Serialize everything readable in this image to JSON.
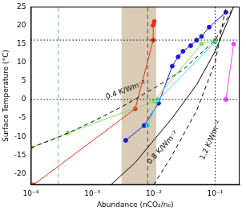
{
  "chart_data": {
    "type": "line",
    "x_label": "Abundance (nCO₂/n₀)",
    "y_label": "Surface Temperature (°C)",
    "log": "x",
    "grid": false,
    "xlim": [
      0.0001,
      0.25
    ],
    "xticks": [
      {
        "value": 0.0001,
        "label": "10⁻⁴"
      },
      {
        "value": 0.001,
        "label": "10⁻³"
      },
      {
        "value": 0.01,
        "label": "10⁻²"
      },
      {
        "value": 0.1,
        "label": "10⁻¹"
      }
    ],
    "ylim": [
      -23,
      25
    ],
    "yticks": [
      -20,
      -15,
      -10,
      -5,
      0,
      5,
      10,
      15,
      20,
      25
    ],
    "shaded_band": {
      "x": [
        0.003,
        0.011
      ],
      "color": "#d9cbb5"
    },
    "series": [
      {
        "color": "#000000",
        "line_style": "dotted",
        "marker": "none",
        "x": [
          0.0001,
          0.25
        ],
        "values": [
          0,
          0
        ]
      },
      {
        "color": "#000000",
        "line_style": "dotted",
        "marker": "none",
        "x": [
          0.0001,
          0.25
        ],
        "values": [
          16,
          16
        ]
      },
      {
        "color": "#000000",
        "line_style": "dotted",
        "marker": "none",
        "x": [
          0.1,
          0.1
        ],
        "values": [
          -23,
          25
        ]
      },
      {
        "color": "#4fb3bf",
        "line_style": "dashed",
        "marker": "none",
        "x": [
          0.00028,
          0.00028
        ],
        "values": [
          -23,
          25
        ]
      },
      {
        "color": "#5c4a1c",
        "line_style": "dashed",
        "marker": "none",
        "x": [
          0.008,
          0.008
        ],
        "values": [
          -23,
          25
        ]
      },
      {
        "color": "#000000",
        "line_style": "dashed",
        "marker": "none",
        "x": [
          0.0001,
          0.0003,
          0.001,
          0.003,
          0.01,
          0.03,
          0.1,
          0.2
        ],
        "values": [
          -13,
          -10,
          -6,
          -2,
          3,
          8,
          16,
          25
        ]
      },
      {
        "color": "#000000",
        "line_style": "solid",
        "marker": "none",
        "x": [
          0.002,
          0.005,
          0.01,
          0.02,
          0.05,
          0.1,
          0.2
        ],
        "values": [
          -23,
          -17,
          -11,
          -5,
          4,
          13,
          25
        ]
      },
      {
        "color": "#000000",
        "line_style": "dashed",
        "marker": "none",
        "x": [
          0.01,
          0.02,
          0.05,
          0.1,
          0.15
        ],
        "values": [
          -23,
          -15,
          -3,
          10,
          25
        ]
      },
      {
        "color": "#80e060",
        "line_style": "solid",
        "marker": "circle",
        "x": [
          0.0001,
          0.0004,
          0.01,
          0.06,
          0.1
        ],
        "values": [
          -13,
          -9,
          -0.5,
          15,
          16
        ]
      },
      {
        "color": "#e03020",
        "line_style": "solid",
        "marker": "circle",
        "x": [
          0.00011,
          0.005,
          0.0098,
          0.0098,
          0.0102
        ],
        "values": [
          -23,
          -2.5,
          16,
          20,
          21
        ]
      },
      {
        "color": "#40e0e0",
        "line_style": "solid",
        "marker": "circle",
        "x": [
          0.008,
          0.012,
          0.1
        ],
        "values": [
          -7,
          0,
          15.5
        ]
      },
      {
        "color": "#1a1adb",
        "line_style": "solid",
        "marker": "circle",
        "x": [
          0.0035,
          0.007,
          0.012,
          0.02,
          0.025,
          0.03,
          0.04,
          0.05,
          0.06,
          0.08,
          0.15
        ],
        "values": [
          -11,
          -7,
          -1,
          9,
          11.5,
          13,
          14.5,
          16,
          17,
          19.5,
          23.5
        ]
      },
      {
        "color": "#ff40ff",
        "line_style": "solid",
        "marker": "circle",
        "x": [
          0.15,
          0.2
        ],
        "values": [
          0,
          15
        ]
      }
    ],
    "annotations": [
      {
        "text": "0.4 K/Wm⁻²",
        "x": 0.0035,
        "y": 2.5
      },
      {
        "text": "0.8 K/Wm⁻²",
        "x": 0.014,
        "y": -13
      },
      {
        "text": "1.2 K/Wm⁻²",
        "x": 0.085,
        "y": -11
      }
    ]
  }
}
